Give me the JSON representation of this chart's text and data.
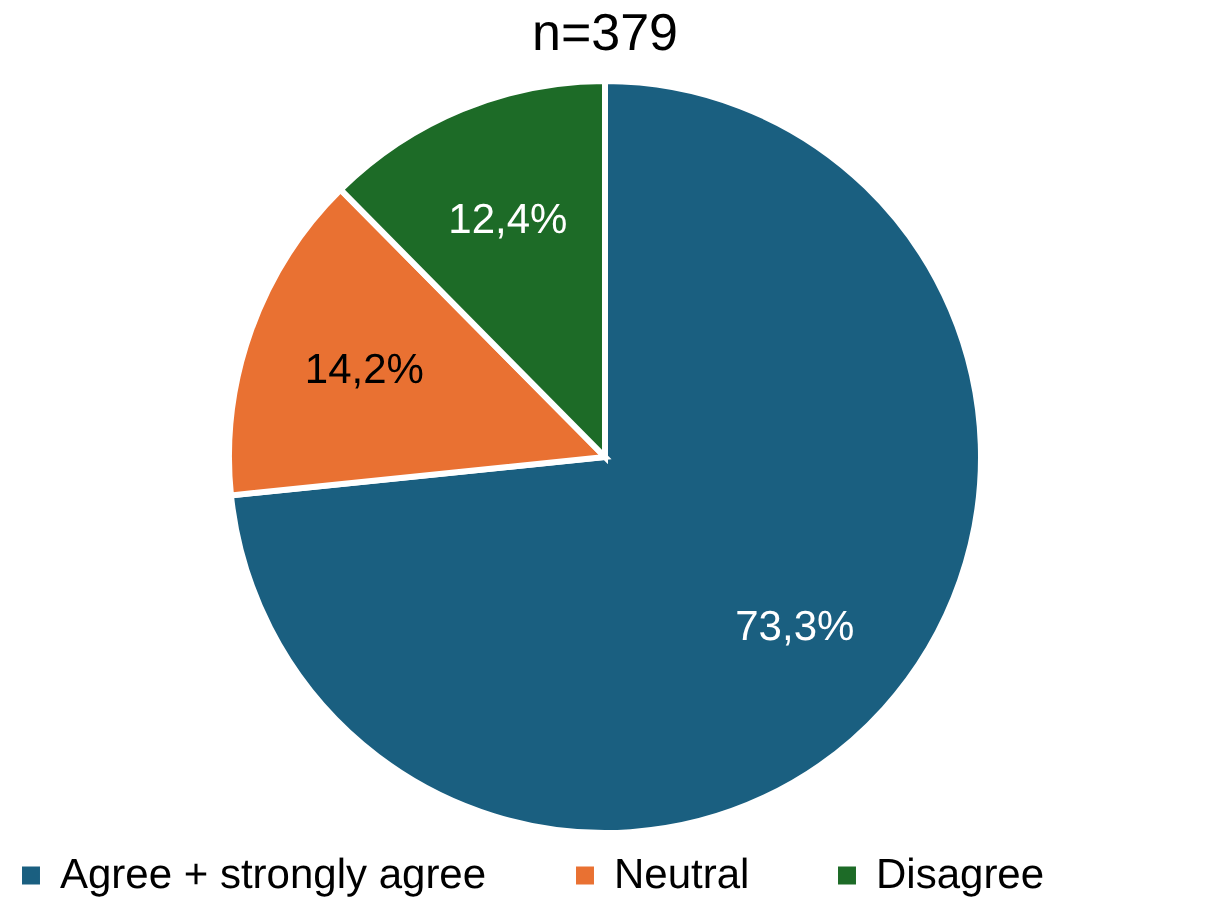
{
  "chart_data": {
    "type": "pie",
    "title": "n=379",
    "categories": [
      "Agree + strongly agree",
      "Neutral",
      "Disagree"
    ],
    "values": [
      73.3,
      14.2,
      12.4
    ],
    "value_labels": [
      "73,3%",
      "14,2%",
      "12,4%"
    ],
    "colors": [
      "#1a5f80",
      "#e97132",
      "#1d6b27"
    ],
    "legend": "bottom"
  }
}
